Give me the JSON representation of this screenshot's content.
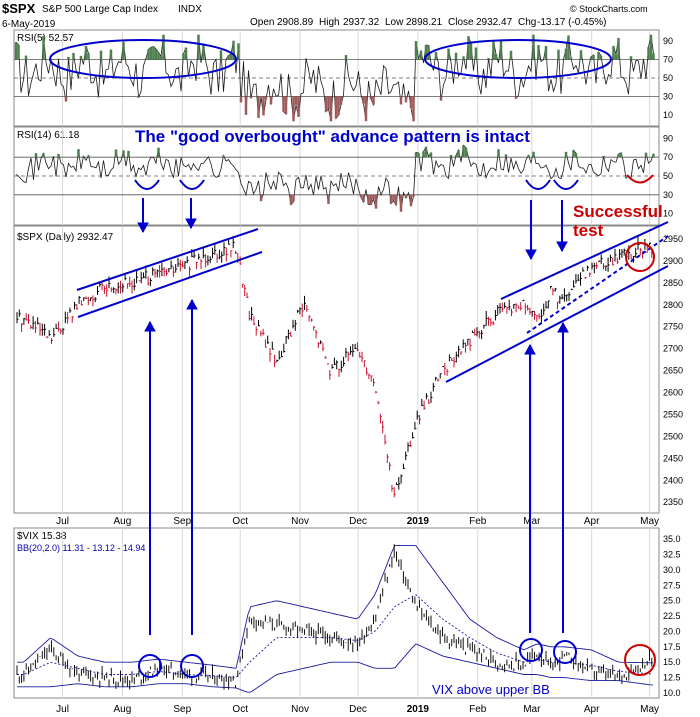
{
  "header": {
    "symbol": "$SPX",
    "name": "S&P 500 Large Cap Index",
    "exchange": "INDX",
    "date": "6-May-2019",
    "open_label": "Open",
    "open": "2908.89",
    "high_label": "High",
    "high": "2937.32",
    "low_label": "Low",
    "low": "2898.21",
    "close_label": "Close",
    "close": "2932.47",
    "chg_label": "Chg",
    "chg": "-13.17 (-0.45%)",
    "watermark": "© StockCharts.com"
  },
  "colors": {
    "line": "#1a1a1a",
    "blue": "#0000cc",
    "red": "#cc0000",
    "overbought_fill": "#4f7f4f",
    "oversold_fill": "#9e5a5a",
    "price_down": "#c8102e",
    "price_up": "#000000"
  },
  "annotations": {
    "headline": "The \"good overbought\" advance pattern is intact",
    "successful_test": "Successful test",
    "successful_test_line1": "Successful",
    "successful_test_line2": "test",
    "vix_note": "VIX above upper BB"
  },
  "chart_data": [
    {
      "type": "line",
      "panel": "rsi5",
      "label": "RSI(5) 52.57",
      "y_ticks": [
        10,
        30,
        50,
        70,
        90
      ],
      "ylim": [
        0,
        100
      ],
      "last_value": 52.57
    },
    {
      "type": "line",
      "panel": "rsi14",
      "label": "RSI(14) 61.18",
      "y_ticks": [
        10,
        30,
        50,
        70,
        90
      ],
      "ylim": [
        0,
        100
      ],
      "last_value": 61.18
    },
    {
      "type": "line",
      "panel": "price",
      "label": "$SPX (Daily) 2932.47",
      "x_ticks": [
        "Jul",
        "Aug",
        "Sep",
        "Oct",
        "Nov",
        "Dec",
        "2019",
        "Feb",
        "Mar",
        "Apr",
        "May"
      ],
      "y_ticks": [
        2350,
        2400,
        2450,
        2500,
        2550,
        2600,
        2650,
        2700,
        2750,
        2800,
        2850,
        2900,
        2950
      ],
      "ylim": [
        2330,
        2975
      ],
      "x": [
        "Jun 15",
        "Jun 29",
        "Jul 13",
        "Jul 27",
        "Aug 10",
        "Aug 24",
        "Sep 7",
        "Sep 21",
        "Oct 3",
        "Oct 10",
        "Oct 24",
        "Nov 7",
        "Nov 21",
        "Dec 5",
        "Dec 14",
        "Dec 24",
        "Jan 4",
        "Jan 18",
        "Feb 1",
        "Feb 15",
        "Mar 1",
        "Mar 8",
        "Mar 15",
        "Mar 22",
        "Apr 5",
        "Apr 19",
        "May 6"
      ],
      "values": [
        2770,
        2720,
        2800,
        2840,
        2850,
        2870,
        2890,
        2920,
        2930,
        2780,
        2670,
        2800,
        2650,
        2700,
        2620,
        2360,
        2530,
        2650,
        2720,
        2780,
        2800,
        2760,
        2830,
        2810,
        2890,
        2910,
        2932
      ]
    },
    {
      "type": "line",
      "panel": "vix",
      "label": "$VIX 15.38",
      "bb_label": "BB(20,2.0) 11.31 - 13.12 - 14.94",
      "x_ticks": [
        "Jul",
        "Aug",
        "Sep",
        "Oct",
        "Nov",
        "Dec",
        "2019",
        "Feb",
        "Mar",
        "Apr",
        "May"
      ],
      "y_ticks": [
        10.0,
        12.5,
        15.0,
        17.5,
        20.0,
        22.5,
        25.0,
        27.5,
        30.0,
        32.5,
        35.0
      ],
      "ylim": [
        9.5,
        36.5
      ],
      "x": [
        "Jun 15",
        "Jun 29",
        "Jul 13",
        "Jul 27",
        "Aug 10",
        "Aug 24",
        "Sep 7",
        "Sep 21",
        "Oct 3",
        "Oct 10",
        "Oct 24",
        "Nov 7",
        "Nov 21",
        "Dec 5",
        "Dec 14",
        "Dec 24",
        "Jan 4",
        "Jan 18",
        "Feb 1",
        "Feb 15",
        "Mar 1",
        "Mar 8",
        "Mar 15",
        "Mar 22",
        "Apr 5",
        "Apr 19",
        "May 6"
      ],
      "values": [
        13,
        17,
        13,
        12.5,
        12,
        14,
        13,
        12.5,
        12,
        22,
        21,
        20,
        19,
        18,
        22,
        33,
        24,
        19,
        17,
        15,
        14.5,
        16.5,
        14,
        16,
        13.5,
        12.5,
        15.4
      ],
      "bb_upper": [
        15,
        19,
        16,
        15,
        15,
        15.5,
        15,
        14.5,
        14,
        24,
        25,
        24,
        23,
        22,
        26,
        34,
        34,
        28,
        22,
        19,
        17,
        18,
        17.5,
        17.5,
        17,
        15,
        14.9
      ],
      "bb_middle": [
        13,
        15,
        14,
        13,
        13,
        13.5,
        13,
        12.8,
        12.5,
        15,
        19,
        19,
        19,
        18.5,
        20,
        24,
        26,
        22,
        19,
        16.5,
        15,
        15.5,
        15,
        15,
        14.5,
        13.5,
        13.1
      ],
      "bb_lower": [
        11,
        11,
        11.5,
        11,
        11,
        11.5,
        11.5,
        11,
        10.8,
        10,
        13,
        14,
        15,
        15,
        14,
        14,
        18,
        16,
        15,
        14,
        13,
        13,
        12.5,
        12.5,
        12,
        12,
        11.3
      ]
    }
  ]
}
